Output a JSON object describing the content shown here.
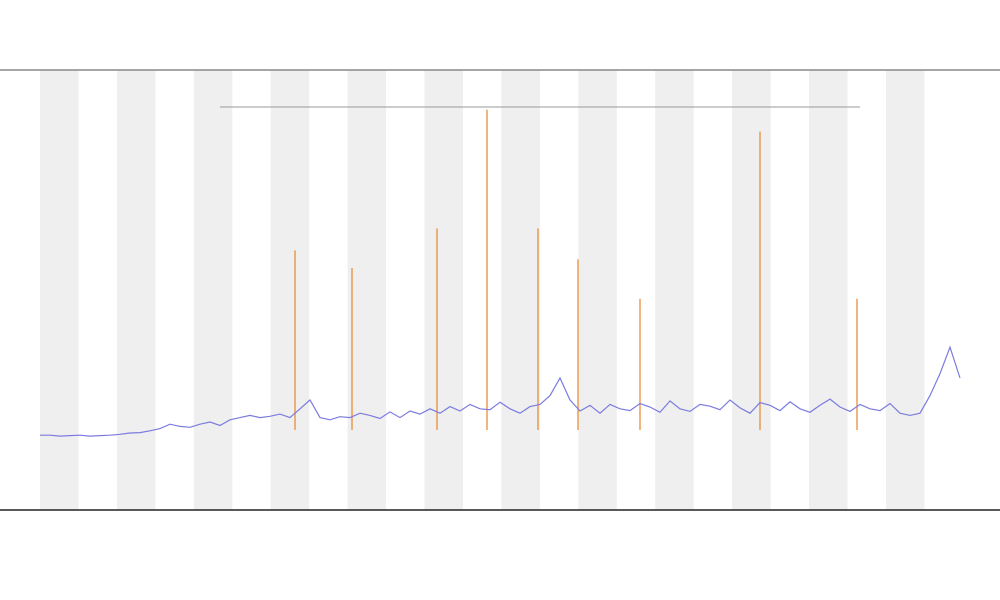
{
  "chart_data": {
    "type": "line",
    "xlim": [
      0,
      100
    ],
    "ylim": [
      0,
      100
    ],
    "x": [
      4,
      5,
      6,
      7,
      8,
      9,
      10,
      11,
      12,
      13,
      14,
      15,
      16,
      17,
      18,
      19,
      20,
      21,
      22,
      23,
      24,
      25,
      26,
      27,
      28,
      29,
      30,
      31,
      32,
      33,
      34,
      35,
      36,
      37,
      38,
      39,
      40,
      41,
      42,
      43,
      44,
      45,
      46,
      47,
      48,
      49,
      50,
      51,
      52,
      53,
      54,
      55,
      56,
      57,
      58,
      59,
      60,
      61,
      62,
      63,
      64,
      65,
      66,
      67,
      68,
      69,
      70,
      71,
      72,
      73,
      74,
      75,
      76,
      77,
      78,
      79,
      80,
      81,
      82,
      83,
      84,
      85,
      86,
      87,
      88,
      89,
      90,
      91,
      92,
      93,
      94,
      95,
      96
    ],
    "series": [
      {
        "color": "#7b7be0",
        "values": [
          17,
          17,
          16.8,
          16.9,
          17,
          16.8,
          16.9,
          17,
          17.2,
          17.5,
          17.6,
          18,
          18.5,
          19.5,
          19,
          18.8,
          19.5,
          20,
          19.2,
          20.5,
          21,
          21.5,
          21,
          21.3,
          21.8,
          21,
          23,
          25,
          21,
          20.5,
          21.2,
          21,
          22,
          21.5,
          20.8,
          22.3,
          21,
          22.5,
          21.8,
          23,
          22,
          23.5,
          22.5,
          24,
          23,
          22.8,
          24.5,
          23,
          22,
          23.5,
          24,
          26,
          30,
          25,
          22.5,
          23.8,
          22,
          24,
          23,
          22.6,
          24.2,
          23.4,
          22.2,
          24.8,
          23,
          22.4,
          24,
          23.6,
          22.8,
          25,
          23.2,
          22,
          24.4,
          23.8,
          22.6,
          24.6,
          23,
          22.2,
          23.8,
          25.2,
          23.4,
          22.4,
          24,
          23,
          22.6,
          24.2,
          22,
          21.5,
          22,
          26,
          31,
          37,
          30
        ]
      },
      {
        "color": "#e8872a",
        "x": [
          29.5,
          35.2,
          43.7,
          48.7,
          53.8,
          57.8,
          64,
          76,
          85.7
        ],
        "values": [
          59,
          55,
          64,
          91,
          64,
          57,
          48,
          86,
          48
        ]
      }
    ]
  }
}
